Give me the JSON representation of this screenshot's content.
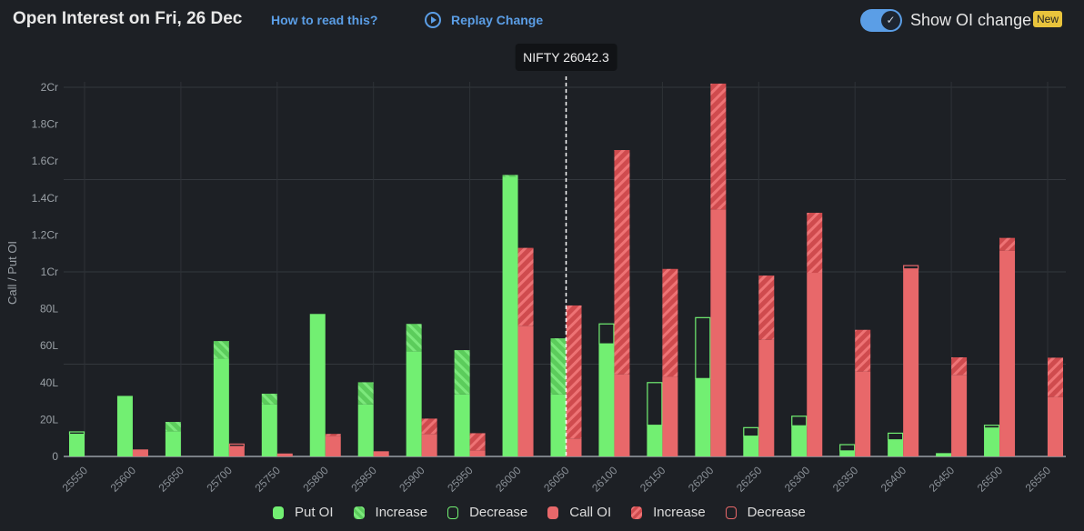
{
  "header": {
    "title": "Open Interest on Fri, 26 Dec",
    "how_to_read": "How to read this?",
    "replay": "Replay Change",
    "toggle_label": "Show OI change",
    "toggle_on": true,
    "badge": "New"
  },
  "spot": {
    "label": "NIFTY 26042.3",
    "value": 26042.3
  },
  "colors": {
    "put": "#72ef72",
    "put_inc": "#5ccc5c",
    "call": "#e8686a",
    "call_inc": "#cf4b4e",
    "bg": "#1d2025",
    "link": "#5b9ee6"
  },
  "legend": [
    {
      "label": "Put OI",
      "kind": "put-solid"
    },
    {
      "label": "Increase",
      "kind": "put-inc"
    },
    {
      "label": "Decrease",
      "kind": "put-dec"
    },
    {
      "label": "Call OI",
      "kind": "call-solid"
    },
    {
      "label": "Increase",
      "kind": "call-inc"
    },
    {
      "label": "Decrease",
      "kind": "call-dec"
    }
  ],
  "chart_data": {
    "type": "bar",
    "ylabel": "Call / Put OI",
    "unit": "lakh",
    "ylim": [
      0,
      200
    ],
    "yticks": [
      {
        "v": 0,
        "label": "0"
      },
      {
        "v": 20,
        "label": "20L"
      },
      {
        "v": 40,
        "label": "40L"
      },
      {
        "v": 60,
        "label": "60L"
      },
      {
        "v": 80,
        "label": "80L"
      },
      {
        "v": 100,
        "label": "1Cr"
      },
      {
        "v": 120,
        "label": "1.2Cr"
      },
      {
        "v": 140,
        "label": "1.4Cr"
      },
      {
        "v": 160,
        "label": "1.6Cr"
      },
      {
        "v": 180,
        "label": "1.8Cr"
      },
      {
        "v": 200,
        "label": "2Cr"
      }
    ],
    "categories": [
      "25550",
      "25600",
      "25650",
      "25700",
      "25750",
      "25800",
      "25850",
      "25900",
      "25950",
      "26000",
      "26050",
      "26100",
      "26150",
      "26200",
      "26250",
      "26300",
      "26350",
      "26400",
      "26450",
      "26500",
      "26550"
    ],
    "series": [
      {
        "name": "Put OI",
        "oi": [
          12,
          32.8,
          18.7,
          62.5,
          34,
          77.2,
          40.2,
          71.8,
          57.6,
          152.5,
          64,
          61,
          16.9,
          42.2,
          11,
          16.6,
          3,
          9,
          1.8,
          15.4,
          0
        ],
        "change": [
          -1.3,
          0,
          5,
          9.5,
          5.8,
          0,
          12,
          14.8,
          24,
          1,
          30.4,
          -10.8,
          -23.1,
          -33,
          -4.6,
          -5.2,
          -3.4,
          -3.6,
          0,
          -1.5,
          0
        ]
      },
      {
        "name": "Call OI",
        "oi": [
          0,
          3.8,
          0,
          5.4,
          1.6,
          12.2,
          2.8,
          20.5,
          12.6,
          113,
          81.8,
          166,
          101.6,
          202,
          98,
          132,
          68.6,
          101.6,
          53.7,
          118.4,
          53.5
        ],
        "change": [
          0,
          0,
          0,
          -1.3,
          0,
          1,
          0,
          8.3,
          9.3,
          42.2,
          72.1,
          121.5,
          58.3,
          68.2,
          34.8,
          32.5,
          22.6,
          -1.8,
          9.5,
          6.9,
          21.3
        ]
      }
    ]
  }
}
